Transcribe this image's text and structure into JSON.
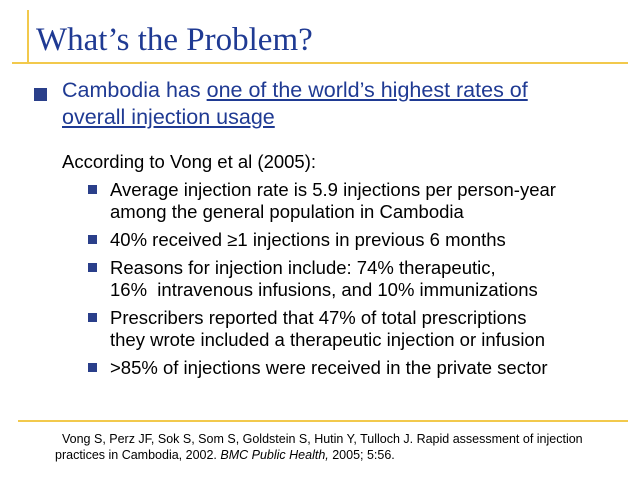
{
  "slide": {
    "title": "What’s the Problem?",
    "bullet1": {
      "prefix": "Cambodia has ",
      "link_line1": "one of the world’s highest rates of",
      "link_line2": "overall injection usage"
    },
    "according": "According to Vong et al (2005):",
    "sub_bullets": [
      {
        "line1": "Average injection rate is 5.9 injections per person-year",
        "line2": "among the general population in Cambodia"
      },
      {
        "line1": "40% received ≥1 injections in previous 6 months",
        "line2": ""
      },
      {
        "line1": "Reasons for injection include: 74% therapeutic,",
        "line2": "16%  intravenous infusions, and 10% immunizations"
      },
      {
        "line1": "Prescribers reported that 47% of total prescriptions",
        "line2": "they wrote included a therapeutic injection or infusion"
      },
      {
        "line1": ">85% of injections were received in the private sector",
        "line2": ""
      }
    ],
    "reference": {
      "line1": "Vong S, Perz JF, Sok S, Som S, Goldstein S, Hutin Y, Tulloch J. Rapid assessment of injection",
      "line2_prefix": "practices in Cambodia, 2002. ",
      "journal": "BMC Public Health,",
      "line2_suffix": " 2005; 5:56."
    },
    "colors": {
      "title": "#1f3a93",
      "accent_line": "#f2c94c",
      "bullet": "#2a3f8a"
    }
  }
}
